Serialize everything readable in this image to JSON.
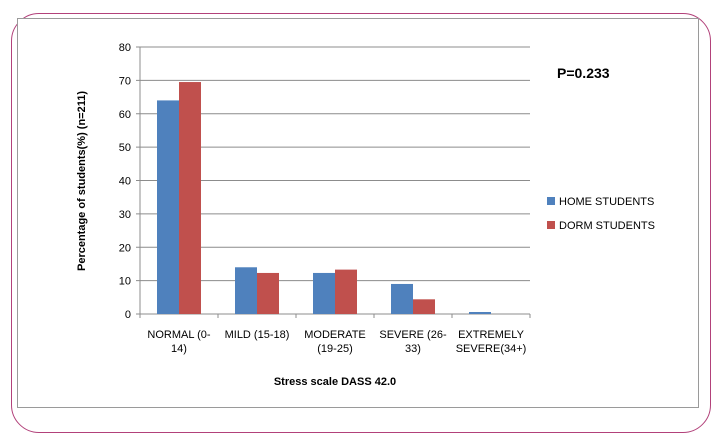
{
  "chart_data": {
    "type": "bar",
    "categories": [
      [
        "NORMAL (0-",
        "14)"
      ],
      [
        "MILD (15-18)"
      ],
      [
        "MODERATE",
        "(19-25)"
      ],
      [
        "SEVERE (26-",
        "33)"
      ],
      [
        "EXTREMELY",
        "SEVERE(34+)"
      ]
    ],
    "series": [
      {
        "name": "HOME STUDENTS",
        "color": "#4f81bd",
        "values": [
          64,
          14,
          12.3,
          9,
          0.6
        ]
      },
      {
        "name": "DORM STUDENTS",
        "color": "#c0504d",
        "values": [
          69.5,
          12.3,
          13.3,
          4.4,
          0
        ]
      }
    ],
    "xlabel": "Stress scale DASS 42.0",
    "ylabel": "Percentage of students(%) (n=211)",
    "ylim": [
      0,
      80
    ],
    "yticks": [
      0,
      10,
      20,
      30,
      40,
      50,
      60,
      70,
      80
    ],
    "grid": true,
    "legend": "right",
    "annotation": "P=0.233"
  },
  "colors": {
    "frame": "#b2417a",
    "grid": "#8c8c8c",
    "axis": "#8c8c8c"
  }
}
